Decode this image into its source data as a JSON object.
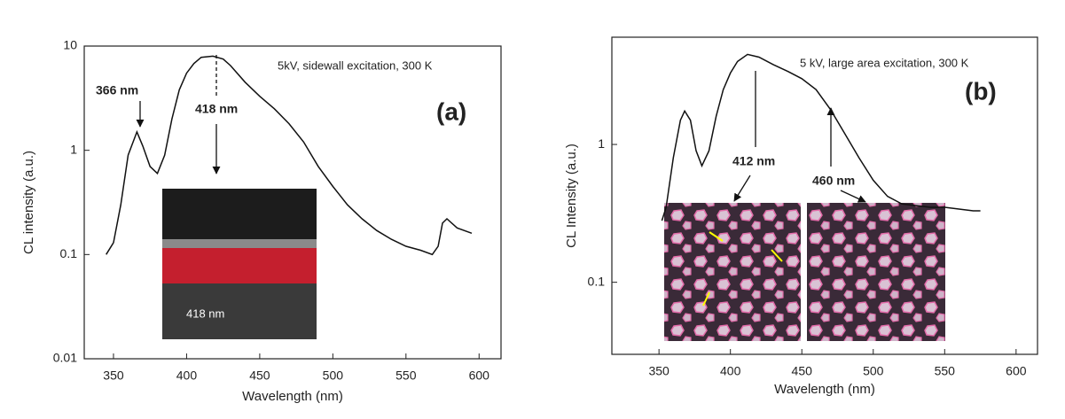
{
  "chart_data": [
    {
      "type": "line",
      "x_label": "Wavelength (nm)",
      "y_label": "CL intensity (a.u.)",
      "yscale": "log",
      "color": "#111111",
      "annotations": [
        "366 nm",
        "418 nm",
        "5kV, sidewall excitation, 300 K",
        "(a)"
      ],
      "inset_label": "418 nm",
      "xlim": [
        330,
        615
      ],
      "ylim": [
        0.01,
        10
      ],
      "xticks": [
        350,
        400,
        450,
        500,
        550,
        600
      ],
      "yticks": [
        0.01,
        0.1,
        1,
        10
      ],
      "x": [
        345,
        350,
        355,
        360,
        366,
        370,
        375,
        380,
        385,
        390,
        395,
        400,
        405,
        410,
        418,
        425,
        430,
        440,
        450,
        460,
        470,
        480,
        490,
        500,
        510,
        520,
        530,
        540,
        550,
        560,
        568,
        572,
        575,
        578,
        585,
        595
      ],
      "values": [
        0.1,
        0.13,
        0.3,
        0.9,
        1.5,
        1.1,
        0.7,
        0.6,
        0.9,
        2,
        3.8,
        5.5,
        6.8,
        7.8,
        8,
        7.5,
        6.5,
        4.5,
        3.3,
        2.5,
        1.8,
        1.2,
        0.7,
        0.45,
        0.3,
        0.22,
        0.17,
        0.14,
        0.12,
        0.11,
        0.1,
        0.12,
        0.2,
        0.22,
        0.18,
        0.16
      ]
    },
    {
      "type": "line",
      "x_label": "Wavelength (nm)",
      "y_label": "CL Intensity (a.u.)",
      "yscale": "log",
      "color": "#111111",
      "annotations": [
        "5 kV, large area excitation, 300 K",
        "(b)",
        "412 nm",
        "460 nm"
      ],
      "xlim": [
        317,
        615
      ],
      "ylim": [
        0.03,
        6
      ],
      "xticks": [
        350,
        400,
        450,
        500,
        550,
        600
      ],
      "yticks": [
        0.1,
        1
      ],
      "x": [
        352,
        355,
        360,
        365,
        368,
        372,
        376,
        380,
        385,
        390,
        395,
        400,
        405,
        412,
        420,
        430,
        440,
        450,
        460,
        470,
        480,
        490,
        500,
        510,
        520,
        530,
        540,
        550,
        560,
        570,
        575
      ],
      "values": [
        0.28,
        0.35,
        0.8,
        1.5,
        1.75,
        1.5,
        0.9,
        0.7,
        0.9,
        1.6,
        2.5,
        3.3,
        4,
        4.5,
        4.3,
        3.8,
        3.4,
        3.0,
        2.5,
        1.8,
        1.2,
        0.8,
        0.55,
        0.42,
        0.37,
        0.36,
        0.35,
        0.35,
        0.34,
        0.33,
        0.33
      ]
    }
  ]
}
